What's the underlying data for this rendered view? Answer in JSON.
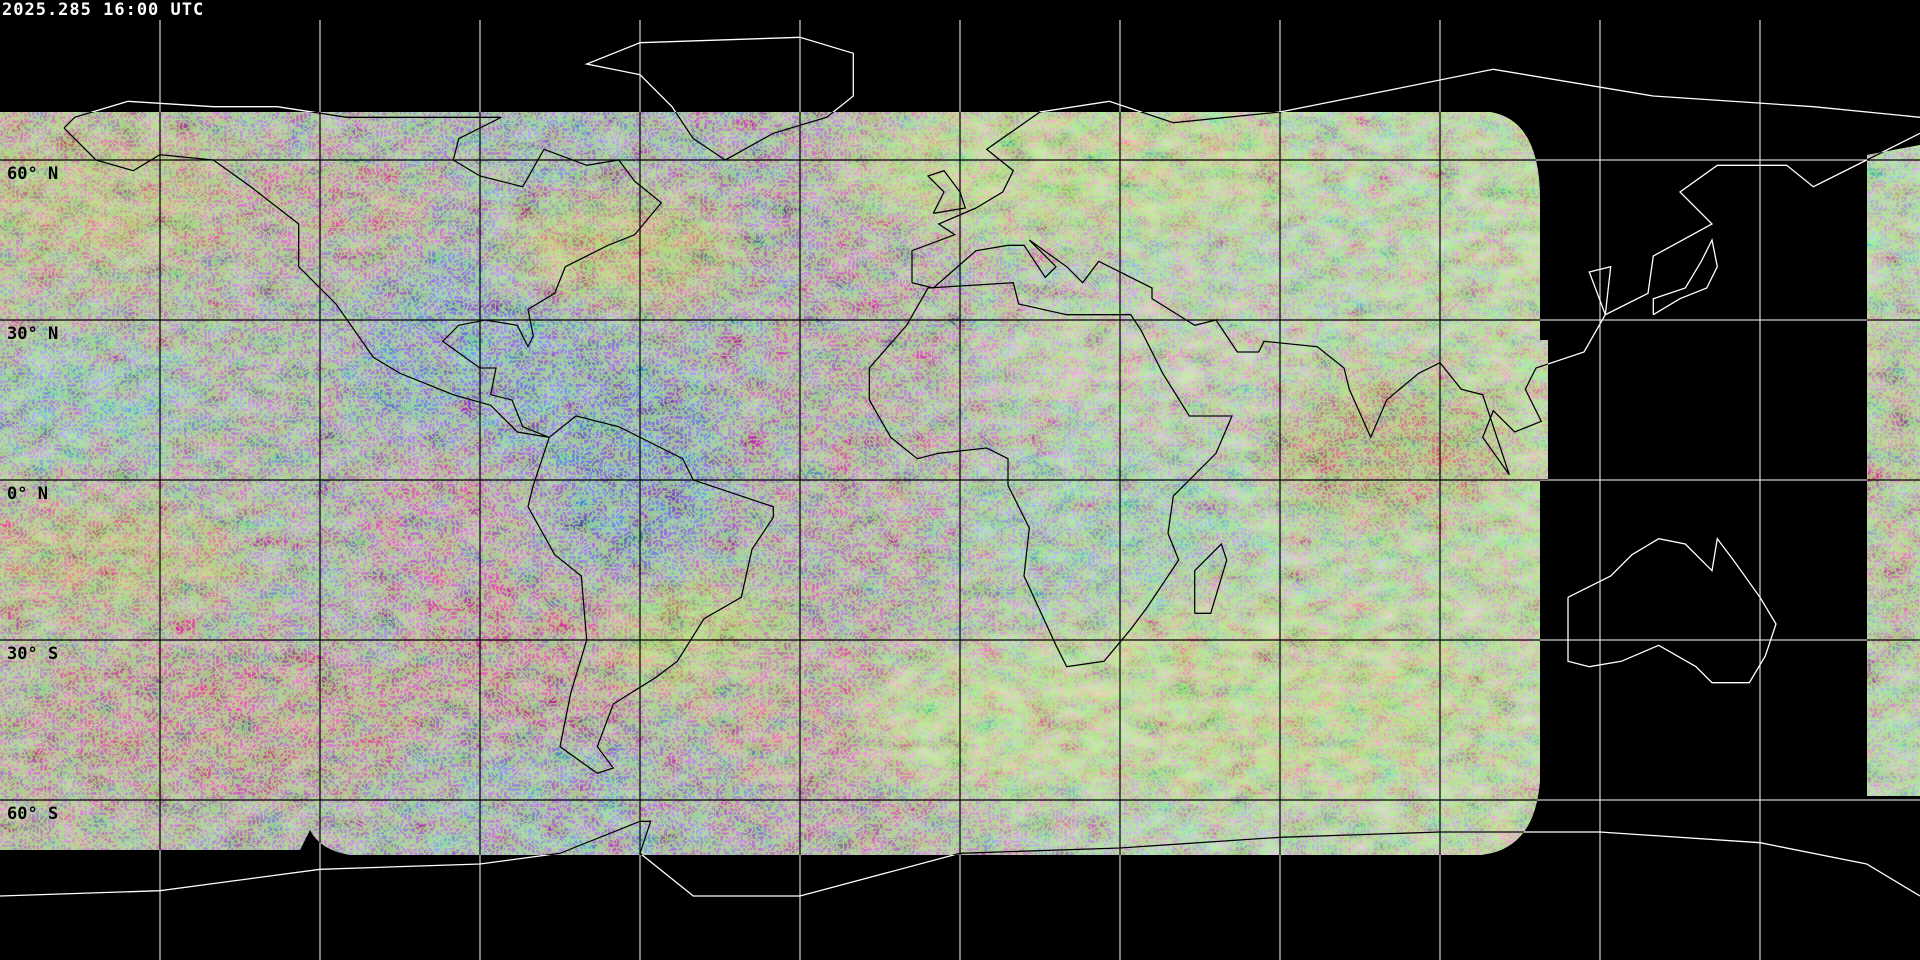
{
  "timestamp": "2025.285 16:00 UTC",
  "latitude_labels": [
    "60° N",
    "30° N",
    "0° N",
    "30° S",
    "60° S"
  ],
  "colors": {
    "background": "#000000",
    "grid_over_space": "#ffffff",
    "grid_over_imagery": "#000000",
    "coastline_over_space": "#ffffff",
    "coastline_over_imagery": "#000000"
  },
  "map": {
    "projection": "equirectangular",
    "grid_spacing_degrees": 30
  }
}
